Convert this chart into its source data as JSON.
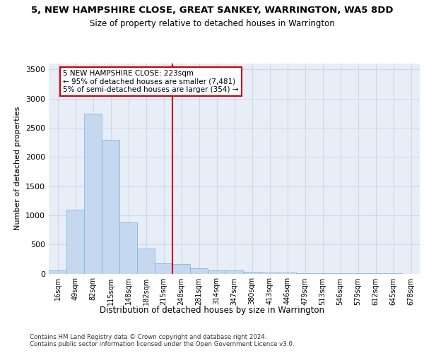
{
  "title1": "5, NEW HAMPSHIRE CLOSE, GREAT SANKEY, WARRINGTON, WA5 8DD",
  "title2": "Size of property relative to detached houses in Warrington",
  "xlabel": "Distribution of detached houses by size in Warrington",
  "ylabel": "Number of detached properties",
  "footnote1": "Contains HM Land Registry data © Crown copyright and database right 2024.",
  "footnote2": "Contains public sector information licensed under the Open Government Licence v3.0.",
  "categories": [
    "16sqm",
    "49sqm",
    "82sqm",
    "115sqm",
    "148sqm",
    "182sqm",
    "215sqm",
    "248sqm",
    "281sqm",
    "314sqm",
    "347sqm",
    "380sqm",
    "413sqm",
    "446sqm",
    "479sqm",
    "513sqm",
    "546sqm",
    "579sqm",
    "612sqm",
    "645sqm",
    "678sqm"
  ],
  "values": [
    50,
    1100,
    2740,
    2290,
    875,
    425,
    170,
    160,
    90,
    60,
    50,
    30,
    20,
    15,
    10,
    5,
    3,
    2,
    1,
    1,
    0
  ],
  "bar_color": "#c5d8f0",
  "bar_edge_color": "#7ab0d8",
  "grid_color": "#d0d8e8",
  "background_color": "#e8eef8",
  "vline_x": 6.5,
  "vline_color": "#cc0000",
  "annotation_text": "5 NEW HAMPSHIRE CLOSE: 223sqm\n← 95% of detached houses are smaller (7,481)\n5% of semi-detached houses are larger (354) →",
  "annotation_box_color": "#cc0000",
  "ylim": [
    0,
    3600
  ],
  "yticks": [
    0,
    500,
    1000,
    1500,
    2000,
    2500,
    3000,
    3500
  ]
}
